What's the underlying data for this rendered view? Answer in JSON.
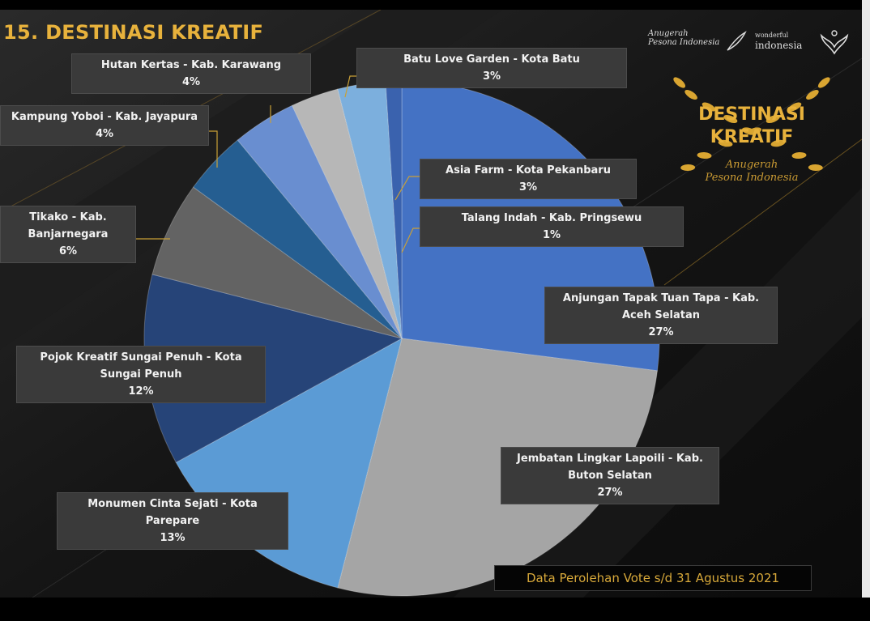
{
  "slide": {
    "title": "15. DESTINASI KREATIF",
    "footer": "Data Perolehan Vote s/d 31 Agustus 2021",
    "logo_left": [
      "Anugerah",
      "Pesona Indonesia"
    ],
    "logo_right": [
      "wonderful",
      "indonesia"
    ],
    "badge": {
      "line1": "DESTINASI",
      "line2": "KREATIF",
      "line3": "Anugerah",
      "line4": "Pesona Indonesia"
    }
  },
  "colors": {
    "accent": "#e8b23c",
    "background": "#141414",
    "label_bg": "#3a3a3a"
  },
  "chart_data": {
    "type": "pie",
    "slices": [
      {
        "name": "Anjungan Tapak Tuan Tapa - Kab. Aceh Selatan",
        "value": 27,
        "label": "27%",
        "color": "#4472c4"
      },
      {
        "name": "Jembatan Lingkar Lapoili - Kab. Buton Selatan",
        "value": 27,
        "label": "27%",
        "color": "#a5a5a5"
      },
      {
        "name": "Monumen Cinta Sejati - Kota Parepare",
        "value": 13,
        "label": "13%",
        "color": "#5b9bd5"
      },
      {
        "name": "Pojok Kreatif Sungai Penuh - Kota Sungai Penuh",
        "value": 12,
        "label": "12%",
        "color": "#264478"
      },
      {
        "name": "Tikako - Kab. Banjarnegara",
        "value": 6,
        "label": "6%",
        "color": "#636363"
      },
      {
        "name": "Kampung Yoboi - Kab. Jayapura",
        "value": 4,
        "label": "4%",
        "color": "#255e91"
      },
      {
        "name": "Hutan Kertas - Kab. Karawang",
        "value": 4,
        "label": "4%",
        "color": "#698ed0"
      },
      {
        "name": "Batu Love Garden - Kota Batu",
        "value": 3,
        "label": "3%",
        "color": "#b7b7b7"
      },
      {
        "name": "Asia Farm - Kota Pekanbaru",
        "value": 3,
        "label": "3%",
        "color": "#7cafdd"
      },
      {
        "name": "Talang Indah - Kab. Pringsewu",
        "value": 1,
        "label": "1%",
        "color": "#3a62ae"
      }
    ],
    "labels_text": [
      {
        "line1": "Anjungan Tapak Tuan Tapa - Kab.",
        "line2": "Aceh Selatan",
        "pct": "27%"
      },
      {
        "line1": "Jembatan Lingkar Lapoili - Kab.",
        "line2": "Buton Selatan",
        "pct": "27%"
      },
      {
        "line1": "Monumen Cinta Sejati - Kota",
        "line2": "Parepare",
        "pct": "13%"
      },
      {
        "line1": "Pojok Kreatif Sungai Penuh - Kota",
        "line2": "Sungai Penuh",
        "pct": "12%"
      },
      {
        "line1": "Tikako - Kab.",
        "line2": "Banjarnegara",
        "pct": "6%"
      },
      {
        "line1": "Kampung Yoboi - Kab. Jayapura",
        "line2": "",
        "pct": "4%"
      },
      {
        "line1": "Hutan Kertas - Kab. Karawang",
        "line2": "",
        "pct": "4%"
      },
      {
        "line1": "Batu Love Garden - Kota Batu",
        "line2": "",
        "pct": "3%"
      },
      {
        "line1": "Asia Farm - Kota Pekanbaru",
        "line2": "",
        "pct": "3%"
      },
      {
        "line1": "Talang Indah - Kab. Pringsewu",
        "line2": "",
        "pct": "1%"
      }
    ]
  }
}
